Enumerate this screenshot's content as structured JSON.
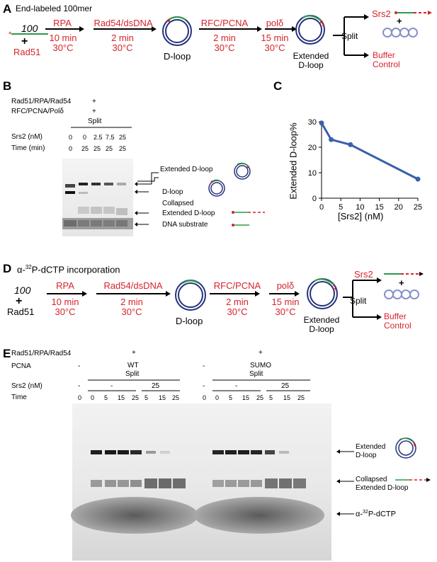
{
  "panel_a": {
    "label": "A",
    "title": "End-labeled 100mer",
    "substrate": "100",
    "plus": "+",
    "rad51": "Rad51",
    "steps": [
      {
        "name": "RPA",
        "time": "10 min",
        "temp": "30°C"
      },
      {
        "name": "Rad54/dsDNA",
        "time": "2 min",
        "temp": "30°C"
      },
      {
        "name": "RFC/PCNA",
        "time": "2 min",
        "temp": "30°C"
      },
      {
        "name": "polδ",
        "time": "15 min",
        "temp": "30°C"
      }
    ],
    "dloop": "D-loop",
    "extended_line1": "Extended",
    "extended_line2": "D-loop",
    "srs2": "Srs2",
    "split": "Split",
    "plus2": "+",
    "buffer_line1": "Buffer",
    "buffer_line2": "Control"
  },
  "panel_b": {
    "label": "B",
    "row1_label": "Rad51/RPA/Rad54",
    "row1_val": "+",
    "row2_label": "RFC/PCNA/Polδ",
    "row2_val": "+",
    "split": "Split",
    "srs2_label": "Srs2 (nM)",
    "srs2_values": [
      "0",
      "0",
      "2.5",
      "7.5",
      "25"
    ],
    "time_label": "Time (min)",
    "time_values": [
      "0",
      "25",
      "25",
      "25",
      "25"
    ],
    "band_labels": {
      "extended": "Extended D-loop",
      "dloop": "D-loop",
      "collapsed_line1": "Collapsed",
      "collapsed_line2": "Extended D-loop",
      "substrate": "DNA substrate"
    }
  },
  "panel_c": {
    "label": "C"
  },
  "chart_data": {
    "type": "line",
    "xlabel": "[Srs2] (nM)",
    "ylabel": "Extended D-loop%",
    "x": [
      0,
      2.5,
      7.5,
      25
    ],
    "y": [
      29.5,
      23,
      21,
      7.5
    ],
    "xlim": [
      0,
      25
    ],
    "ylim": [
      0,
      30
    ],
    "xticks": [
      "0",
      "5",
      "10",
      "15",
      "20",
      "25"
    ],
    "yticks": [
      "0",
      "10",
      "20",
      "30"
    ],
    "color": "#3a5fad"
  },
  "panel_d": {
    "label": "D",
    "title_alpha": "α-",
    "title_sup": "32",
    "title_rest": "P-dCTP incorporation",
    "substrate": "100",
    "plus": "+",
    "rad51": "Rad51",
    "steps": [
      {
        "name": "RPA",
        "time": "10 min",
        "temp": "30°C"
      },
      {
        "name": "Rad54/dsDNA",
        "time": "2 min",
        "temp": "30°C"
      },
      {
        "name": "RFC/PCNA",
        "time": "2 min",
        "temp": "30°C"
      },
      {
        "name": "polδ",
        "time": "15 min",
        "temp": "30°C"
      }
    ],
    "dloop": "D-loop",
    "extended_line1": "Extended",
    "extended_line2": "D-loop",
    "srs2": "Srs2",
    "split": "Split",
    "plus2": "+",
    "buffer_line1": "Buffer",
    "buffer_line2": "Control"
  },
  "panel_e": {
    "label": "E",
    "row1_label": "Rad51/RPA/Rad54",
    "row1_val": "+",
    "pcna_label": "PCNA",
    "dash": "-",
    "wt": "WT",
    "sumo": "SUMO",
    "split": "Split",
    "srs2_label": "Srs2 (nM)",
    "srs2_minus": "-",
    "srs2_25": "25",
    "time_label": "Time",
    "times": [
      "0",
      "0",
      "5",
      "15",
      "25",
      "5",
      "15",
      "25"
    ],
    "band_labels": {
      "extended_line1": "Extended",
      "extended_line2": "D-loop",
      "collapsed_line1": "Collapsed",
      "collapsed_line2": "Extended D-loop",
      "dctp_alpha": "α-",
      "dctp_sup": "32",
      "dctp_rest": "P-dCTP"
    }
  }
}
